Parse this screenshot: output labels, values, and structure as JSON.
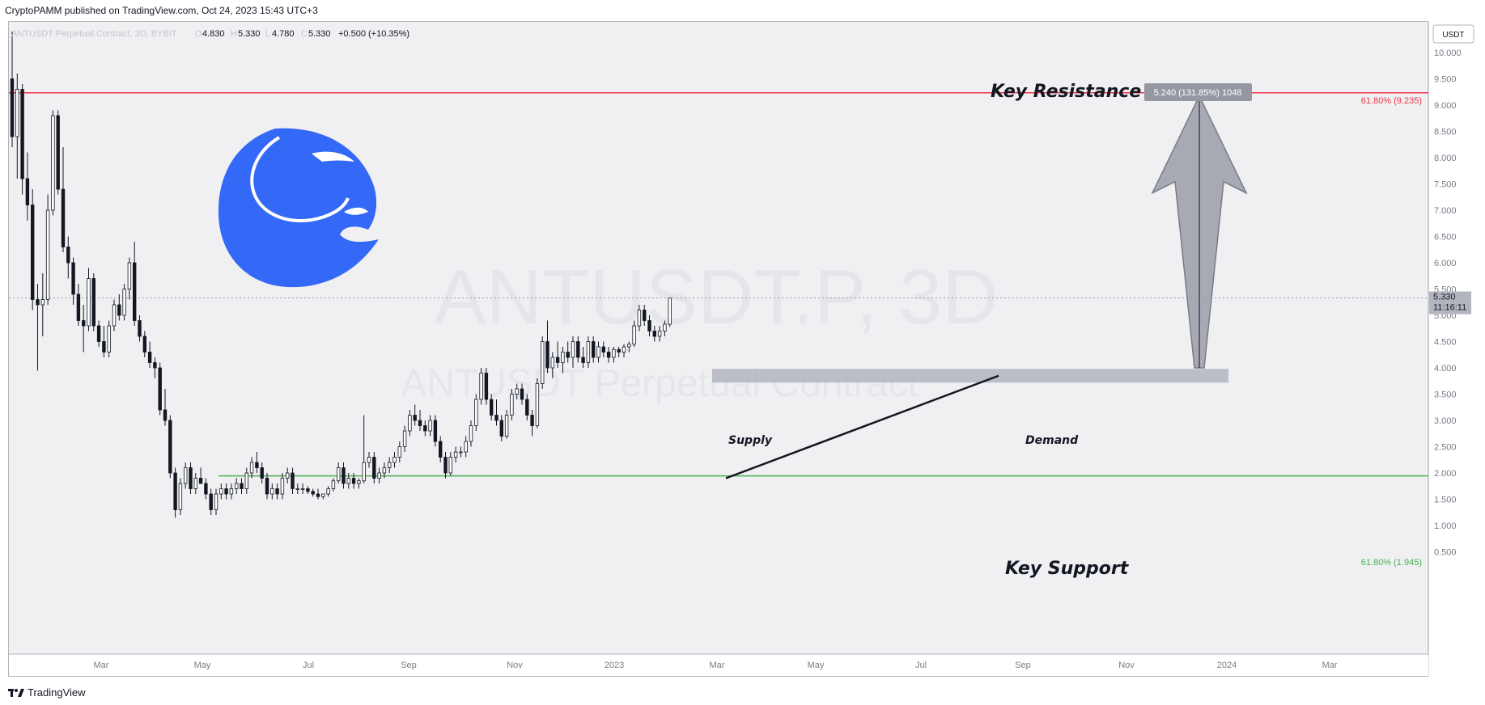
{
  "header": {
    "published": "CryptoPAMM published on TradingView.com, Oct 24, 2023 15:43 UTC+3"
  },
  "legend": {
    "symbol": "ANTUSDT Perpetual Contract, 3D, BYBIT",
    "open_label": "O",
    "open": "4.830",
    "high_label": "H",
    "high": "5.330",
    "low_label": "L",
    "low": "4.780",
    "close_label": "C",
    "close": "5.330",
    "change": "+0.500 (+10.35%)"
  },
  "currency_button": "USDT",
  "watermark": {
    "line1": "ANTUSDT.P, 3D",
    "line2": "ANTUSDT Perpetual Contract"
  },
  "annotations": {
    "key_resistance": "Key Resistance",
    "key_support": "Key Support",
    "supply": "Supply",
    "demand": "Demand",
    "measure_label": "5.240 (131.85%) 1048",
    "fib_upper": "61.80% (9.235)",
    "fib_lower": "61.80% (1.945)"
  },
  "price_tag": {
    "price": "5.330",
    "countdown": "11:16:11"
  },
  "footer": {
    "brand": "TradingView"
  },
  "colors": {
    "up": "#ffffff",
    "down": "#131722",
    "resistance": "#f23645",
    "support": "#4caf50",
    "zone": "#b2b5be",
    "logo": "#3468f6",
    "arrow": "#9598a1"
  },
  "chart_data": {
    "type": "candlestick",
    "interval": "3D",
    "yaxis": {
      "ticks": [
        "10.000",
        "9.500",
        "9.000",
        "8.500",
        "8.000",
        "7.500",
        "7.000",
        "6.500",
        "6.000",
        "5.500",
        "5.000",
        "4.500",
        "4.000",
        "3.500",
        "3.000",
        "2.500",
        "2.000",
        "1.500",
        "1.000",
        "0.500"
      ],
      "range": [
        0.3,
        10.4
      ]
    },
    "xaxis": {
      "ticks": [
        "Mar",
        "May",
        "Jul",
        "Sep",
        "Nov",
        "2023",
        "Mar",
        "May",
        "Jul",
        "Sep",
        "Nov",
        "2024",
        "Mar"
      ]
    },
    "levels": {
      "resistance": 9.235,
      "support": 1.945,
      "supply_zone": [
        3.72,
        3.98
      ],
      "last_price": 5.33
    },
    "trendline": {
      "from": {
        "date": "Mar 2023",
        "price": 1.9
      },
      "to": {
        "date": "Aug 2023",
        "price": 3.85
      }
    },
    "projection": {
      "from_price": 4.0,
      "to_price": 9.235,
      "change": 5.24,
      "change_pct": 131.85
    },
    "ohlc": [
      [
        9.5,
        10.4,
        8.2,
        8.4
      ],
      [
        8.4,
        9.6,
        7.6,
        9.3
      ],
      [
        9.3,
        9.4,
        7.3,
        7.6
      ],
      [
        7.6,
        8.1,
        6.8,
        7.1
      ],
      [
        7.1,
        7.4,
        5.1,
        5.3
      ],
      [
        5.3,
        5.6,
        3.95,
        5.2
      ],
      [
        5.2,
        5.8,
        4.6,
        5.3
      ],
      [
        5.3,
        7.3,
        5.2,
        7.0
      ],
      [
        7.0,
        8.9,
        6.9,
        8.8
      ],
      [
        8.8,
        8.9,
        7.3,
        7.4
      ],
      [
        7.4,
        8.2,
        6.2,
        6.3
      ],
      [
        6.3,
        6.5,
        5.7,
        6.0
      ],
      [
        6.0,
        6.1,
        5.2,
        5.4
      ],
      [
        5.4,
        5.6,
        4.8,
        4.9
      ],
      [
        4.9,
        5.2,
        4.3,
        4.8
      ],
      [
        4.8,
        5.9,
        4.7,
        5.7
      ],
      [
        5.7,
        5.8,
        4.7,
        4.8
      ],
      [
        4.8,
        4.9,
        4.4,
        4.5
      ],
      [
        4.5,
        4.8,
        4.2,
        4.3
      ],
      [
        4.3,
        4.9,
        4.2,
        4.8
      ],
      [
        4.8,
        5.3,
        4.7,
        5.2
      ],
      [
        5.2,
        5.4,
        4.9,
        5.0
      ],
      [
        5.0,
        5.6,
        4.9,
        5.5
      ],
      [
        5.5,
        6.1,
        5.3,
        6.0
      ],
      [
        6.0,
        6.4,
        4.8,
        4.9
      ],
      [
        4.9,
        5.0,
        4.5,
        4.6
      ],
      [
        4.6,
        4.7,
        4.2,
        4.3
      ],
      [
        4.3,
        4.5,
        4.0,
        4.1
      ],
      [
        4.1,
        4.2,
        3.8,
        4.0
      ],
      [
        4.0,
        4.1,
        3.1,
        3.2
      ],
      [
        3.2,
        3.6,
        2.9,
        3.0
      ],
      [
        3.0,
        3.1,
        1.9,
        2.0
      ],
      [
        2.0,
        2.1,
        1.15,
        1.3
      ],
      [
        1.3,
        1.9,
        1.2,
        1.8
      ],
      [
        1.8,
        2.2,
        1.7,
        2.1
      ],
      [
        2.1,
        2.2,
        1.6,
        1.7
      ],
      [
        1.7,
        2.0,
        1.6,
        1.9
      ],
      [
        1.9,
        2.1,
        1.8,
        1.8
      ],
      [
        1.8,
        1.9,
        1.5,
        1.6
      ],
      [
        1.6,
        1.7,
        1.2,
        1.3
      ],
      [
        1.3,
        1.7,
        1.2,
        1.6
      ],
      [
        1.6,
        1.8,
        1.5,
        1.7
      ],
      [
        1.7,
        1.8,
        1.5,
        1.6
      ],
      [
        1.6,
        1.8,
        1.5,
        1.7
      ],
      [
        1.7,
        1.9,
        1.6,
        1.8
      ],
      [
        1.8,
        1.9,
        1.6,
        1.7
      ],
      [
        1.7,
        2.1,
        1.6,
        2.0
      ],
      [
        2.0,
        2.3,
        1.9,
        2.2
      ],
      [
        2.2,
        2.4,
        2.0,
        2.1
      ],
      [
        2.1,
        2.2,
        1.8,
        1.9
      ],
      [
        1.9,
        2.0,
        1.5,
        1.6
      ],
      [
        1.6,
        1.8,
        1.5,
        1.7
      ],
      [
        1.7,
        1.8,
        1.5,
        1.6
      ],
      [
        1.6,
        2.0,
        1.5,
        1.9
      ],
      [
        1.9,
        2.1,
        1.8,
        2.0
      ],
      [
        2.0,
        2.1,
        1.6,
        1.7
      ],
      [
        1.7,
        1.8,
        1.6,
        1.7
      ],
      [
        1.7,
        1.8,
        1.6,
        1.7
      ],
      [
        1.7,
        1.75,
        1.6,
        1.65
      ],
      [
        1.65,
        1.7,
        1.55,
        1.6
      ],
      [
        1.6,
        1.7,
        1.5,
        1.55
      ],
      [
        1.55,
        1.6,
        1.5,
        1.6
      ],
      [
        1.6,
        1.75,
        1.55,
        1.7
      ],
      [
        1.7,
        1.9,
        1.65,
        1.85
      ],
      [
        1.85,
        2.2,
        1.8,
        2.1
      ],
      [
        2.1,
        2.2,
        1.7,
        1.8
      ],
      [
        1.8,
        2.0,
        1.7,
        1.9
      ],
      [
        1.9,
        2.0,
        1.7,
        1.8
      ],
      [
        1.8,
        1.9,
        1.7,
        1.85
      ],
      [
        1.85,
        3.1,
        1.8,
        2.2
      ],
      [
        2.2,
        2.4,
        2.1,
        2.3
      ],
      [
        2.3,
        2.4,
        1.8,
        1.9
      ],
      [
        1.9,
        2.1,
        1.8,
        2.0
      ],
      [
        2.0,
        2.2,
        1.9,
        2.1
      ],
      [
        2.1,
        2.3,
        2.0,
        2.2
      ],
      [
        2.2,
        2.4,
        2.1,
        2.3
      ],
      [
        2.3,
        2.6,
        2.2,
        2.5
      ],
      [
        2.5,
        2.9,
        2.4,
        2.8
      ],
      [
        2.8,
        3.2,
        2.7,
        3.1
      ],
      [
        3.1,
        3.3,
        2.9,
        3.0
      ],
      [
        3.0,
        3.2,
        2.8,
        2.9
      ],
      [
        2.9,
        3.0,
        2.7,
        2.8
      ],
      [
        2.8,
        3.1,
        2.7,
        3.0
      ],
      [
        3.0,
        3.1,
        2.5,
        2.6
      ],
      [
        2.6,
        2.7,
        2.2,
        2.3
      ],
      [
        2.3,
        2.4,
        1.9,
        2.0
      ],
      [
        2.0,
        2.4,
        1.95,
        2.3
      ],
      [
        2.3,
        2.5,
        2.2,
        2.4
      ],
      [
        2.4,
        2.5,
        2.3,
        2.4
      ],
      [
        2.4,
        2.7,
        2.3,
        2.6
      ],
      [
        2.6,
        3.0,
        2.5,
        2.9
      ],
      [
        2.9,
        3.5,
        2.8,
        3.4
      ],
      [
        3.4,
        4.0,
        3.3,
        3.9
      ],
      [
        3.9,
        4.0,
        3.3,
        3.4
      ],
      [
        3.4,
        3.5,
        3.0,
        3.1
      ],
      [
        3.1,
        3.4,
        2.9,
        3.0
      ],
      [
        3.0,
        3.1,
        2.6,
        2.7
      ],
      [
        2.7,
        3.2,
        2.65,
        3.1
      ],
      [
        3.1,
        3.6,
        3.0,
        3.5
      ],
      [
        3.5,
        3.7,
        3.4,
        3.6
      ],
      [
        3.6,
        3.7,
        3.3,
        3.4
      ],
      [
        3.4,
        3.5,
        3.0,
        3.1
      ],
      [
        3.1,
        3.2,
        2.7,
        2.9
      ],
      [
        2.9,
        3.8,
        2.85,
        3.7
      ],
      [
        3.7,
        4.6,
        3.6,
        4.5
      ],
      [
        4.5,
        4.9,
        3.9,
        4.0
      ],
      [
        4.0,
        4.3,
        3.8,
        4.2
      ],
      [
        4.2,
        4.5,
        4.0,
        4.1
      ],
      [
        4.1,
        4.4,
        3.9,
        4.3
      ],
      [
        4.3,
        4.5,
        4.1,
        4.2
      ],
      [
        4.2,
        4.6,
        4.0,
        4.5
      ],
      [
        4.5,
        4.6,
        4.1,
        4.2
      ],
      [
        4.2,
        4.4,
        4.0,
        4.1
      ],
      [
        4.1,
        4.6,
        4.0,
        4.5
      ],
      [
        4.5,
        4.6,
        4.1,
        4.2
      ],
      [
        4.2,
        4.5,
        4.1,
        4.4
      ],
      [
        4.4,
        4.5,
        4.2,
        4.3
      ],
      [
        4.3,
        4.4,
        4.1,
        4.2
      ],
      [
        4.2,
        4.4,
        4.1,
        4.35
      ],
      [
        4.35,
        4.4,
        4.2,
        4.3
      ],
      [
        4.3,
        4.45,
        4.2,
        4.4
      ],
      [
        4.4,
        4.5,
        4.3,
        4.45
      ],
      [
        4.45,
        4.9,
        4.4,
        4.8
      ],
      [
        4.8,
        5.2,
        4.7,
        5.1
      ],
      [
        5.1,
        5.2,
        4.8,
        4.9
      ],
      [
        4.9,
        5.0,
        4.6,
        4.7
      ],
      [
        4.7,
        4.8,
        4.5,
        4.6
      ],
      [
        4.6,
        4.8,
        4.5,
        4.7
      ],
      [
        4.7,
        4.9,
        4.6,
        4.83
      ],
      [
        4.83,
        5.33,
        4.78,
        5.33
      ]
    ]
  }
}
